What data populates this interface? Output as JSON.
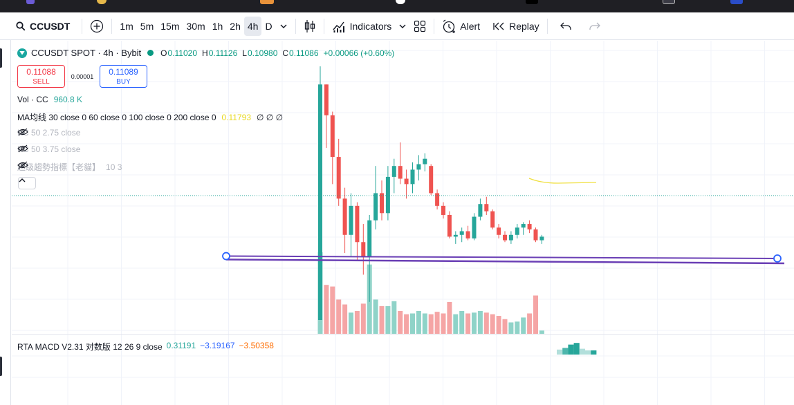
{
  "toolbar": {
    "symbol": "CCUSDT",
    "timeframes": [
      "1m",
      "5m",
      "15m",
      "30m",
      "1h",
      "2h",
      "4h",
      "D"
    ],
    "active_timeframe": "4h",
    "indicators_label": "Indicators",
    "alert_label": "Alert",
    "replay_label": "Replay",
    "icons": [
      "search-icon",
      "add-symbol-icon",
      "chevron-down-icon",
      "candles-icon",
      "indicators-icon",
      "layout-grid-icon",
      "alert-clock-icon",
      "replay-icon",
      "undo-icon",
      "redo-icon"
    ]
  },
  "notification_badge": "1",
  "legend": {
    "title": "CCUSDT SPOT · 4h · Bybit",
    "o_label": "O",
    "o": "0.11020",
    "h_label": "H",
    "h": "0.11126",
    "l_label": "L",
    "l": "0.10980",
    "c_label": "C",
    "c": "0.11086",
    "change": "+0.00066 (+0.60%)"
  },
  "trade": {
    "sell_price": "0.11088",
    "sell_label": "SELL",
    "spread": "0.00001",
    "buy_price": "0.11089",
    "buy_label": "BUY"
  },
  "indicators": {
    "vol_label": "Vol · CC",
    "vol_value": "960.8 K",
    "ma_label": "MA均线 30 close 0 60 close 0 100 close 0 200 close 0",
    "ma_value": "0.11793",
    "ma_nulls": "∅ ∅ ∅",
    "kc1_label": "KC 50 2.75 close",
    "kc2_label": "KC 50 3.75 close",
    "trend_label": "超级趨勢指標【老貓】",
    "trend_params": "10 3"
  },
  "macd": {
    "label": "RTA MACD V2.31 对数版 12 26 9 close",
    "v1": "0.31191",
    "v2": "−3.19167",
    "v3": "−3.50358"
  },
  "colors": {
    "up": "#26a69a",
    "down": "#ef5350",
    "vol_up": "#8fd3c8",
    "vol_down": "#f5a5a5",
    "ma_line": "#f0e040",
    "trend_line": "#6a3fb5",
    "accent_blue": "#2962ff",
    "legend_green": "#089981",
    "macd_orange": "#ff6d00"
  },
  "chart_data": {
    "type": "candlestick",
    "ohlc": [
      [
        0.1075,
        0.1215,
        0.1075,
        0.1205
      ],
      [
        0.1205,
        0.1205,
        0.117,
        0.1188
      ],
      [
        0.1188,
        0.119,
        0.115,
        0.1165
      ],
      [
        0.1165,
        0.1175,
        0.1138,
        0.1142
      ],
      [
        0.1142,
        0.1148,
        0.1112,
        0.1122
      ],
      [
        0.1122,
        0.1145,
        0.111,
        0.1138
      ],
      [
        0.1138,
        0.114,
        0.1108,
        0.1118
      ],
      [
        0.1118,
        0.1128,
        0.11,
        0.111
      ],
      [
        0.111,
        0.1133,
        0.1085,
        0.113
      ],
      [
        0.113,
        0.116,
        0.1125,
        0.1145
      ],
      [
        0.1145,
        0.1152,
        0.113,
        0.1134
      ],
      [
        0.1134,
        0.116,
        0.113,
        0.1154
      ],
      [
        0.1154,
        0.1164,
        0.1145,
        0.116
      ],
      [
        0.116,
        0.1173,
        0.115,
        0.1153
      ],
      [
        0.1153,
        0.1158,
        0.1142,
        0.115
      ],
      [
        0.115,
        0.1162,
        0.1145,
        0.1158
      ],
      [
        0.1158,
        0.1166,
        0.1152,
        0.1161
      ],
      [
        0.1161,
        0.1167,
        0.1157,
        0.1164
      ],
      [
        0.116,
        0.1161,
        0.1144,
        0.1145
      ],
      [
        0.1145,
        0.1147,
        0.1136,
        0.1138
      ],
      [
        0.1138,
        0.114,
        0.1131,
        0.1133
      ],
      [
        0.1133,
        0.1135,
        0.112,
        0.1121
      ],
      [
        0.1121,
        0.1124,
        0.1117,
        0.1122
      ],
      [
        0.1122,
        0.1126,
        0.1118,
        0.1124
      ],
      [
        0.1124,
        0.1127,
        0.1119,
        0.112
      ],
      [
        0.112,
        0.1134,
        0.1119,
        0.1132
      ],
      [
        0.1132,
        0.1142,
        0.113,
        0.1139
      ],
      [
        0.1139,
        0.1143,
        0.1133,
        0.1135
      ],
      [
        0.1135,
        0.1136,
        0.1125,
        0.1126
      ],
      [
        0.1126,
        0.1128,
        0.112,
        0.1122
      ],
      [
        0.1122,
        0.1124,
        0.1118,
        0.1119
      ],
      [
        0.1119,
        0.1124,
        0.1117,
        0.1122
      ],
      [
        0.1122,
        0.1128,
        0.112,
        0.1126
      ],
      [
        0.1126,
        0.1129,
        0.1122,
        0.1128
      ],
      [
        0.1128,
        0.113,
        0.1123,
        0.1125
      ],
      [
        0.1125,
        0.1126,
        0.1118,
        0.1119
      ],
      [
        0.1119,
        0.1122,
        0.1117,
        0.1121
      ]
    ],
    "volume": [
      100,
      60,
      58,
      42,
      36,
      26,
      28,
      37,
      85,
      42,
      34,
      34,
      40,
      28,
      24,
      25,
      28,
      25,
      24,
      27,
      25,
      39,
      24,
      28,
      25,
      26,
      28,
      26,
      24,
      22,
      18,
      14,
      15,
      20,
      25,
      47,
      4
    ],
    "ma_line": [
      0.1136,
      0.1135,
      0.1134,
      0.1134,
      0.1135,
      0.1134
    ],
    "trend_line": {
      "from": 0.11095,
      "to": 0.11082
    },
    "last_price": 0.11086,
    "macd_hist": [
      1.2,
      1.6,
      2.4,
      2.8,
      1.4,
      1.0,
      1.0
    ]
  }
}
